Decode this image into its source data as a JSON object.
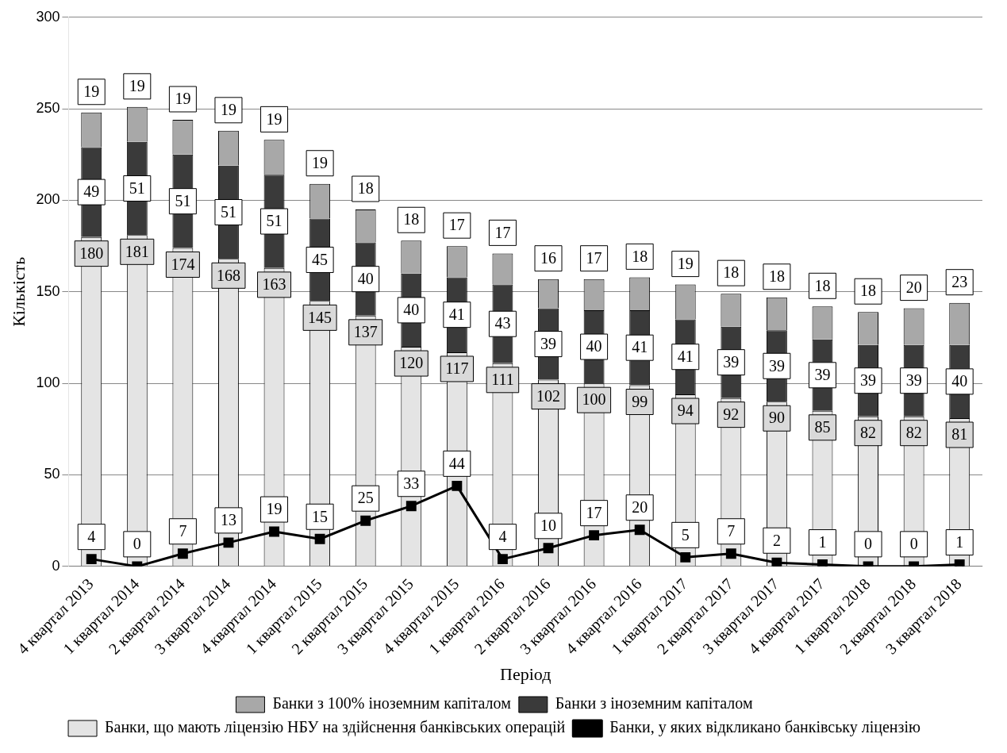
{
  "chart_data": {
    "type": "bar",
    "stacked": true,
    "xlabel": "Період",
    "ylabel": "Кількість",
    "categories": [
      "4 квартал 2013",
      "1 квартал 2014",
      "2 квартал 2014",
      "3 квартал 2014",
      "4 квартал 2014",
      "1 квартал 2015",
      "2 квартал 2015",
      "3 квартал 2015",
      "4 квартал 2015",
      "1 квартал 2016",
      "2 квартал 2016",
      "3 квартал 2016",
      "4 квартал 2016",
      "1 квартал 2017",
      "2 квартал 2017",
      "3 квартал 2017",
      "4 квартал 2017",
      "1 квартал 2018",
      "2 квартал 2018",
      "3 квартал 2018"
    ],
    "series": [
      {
        "name": "Банки, що мають ліцензію НБУ на здійснення банківських операцій",
        "color": "#e4e4e4",
        "values": [
          180,
          181,
          174,
          168,
          163,
          145,
          137,
          120,
          117,
          111,
          102,
          100,
          99,
          94,
          92,
          90,
          85,
          82,
          82,
          81
        ]
      },
      {
        "name": "Банки з іноземним капіталом",
        "color": "#3a3a3a",
        "values": [
          49,
          51,
          51,
          51,
          51,
          45,
          40,
          40,
          41,
          43,
          39,
          40,
          41,
          41,
          39,
          39,
          39,
          39,
          39,
          40
        ]
      },
      {
        "name": "Банки з 100% іноземним капіталом",
        "color": "#a8a8a8",
        "values": [
          19,
          19,
          19,
          19,
          19,
          19,
          18,
          18,
          17,
          17,
          16,
          17,
          18,
          19,
          18,
          18,
          18,
          18,
          20,
          23
        ]
      },
      {
        "name": "Банки, у яких відкликано банківську ліцензію",
        "type": "line",
        "color": "#000000",
        "marker": "square",
        "values": [
          4,
          0,
          7,
          13,
          19,
          15,
          25,
          33,
          44,
          4,
          10,
          17,
          20,
          5,
          7,
          2,
          1,
          0,
          0,
          1
        ]
      }
    ],
    "ylim": [
      0,
      300
    ],
    "yticks": [
      0,
      50,
      100,
      150,
      200,
      250,
      300
    ],
    "grid": "y",
    "legend": "bottom",
    "data_labels": true
  }
}
